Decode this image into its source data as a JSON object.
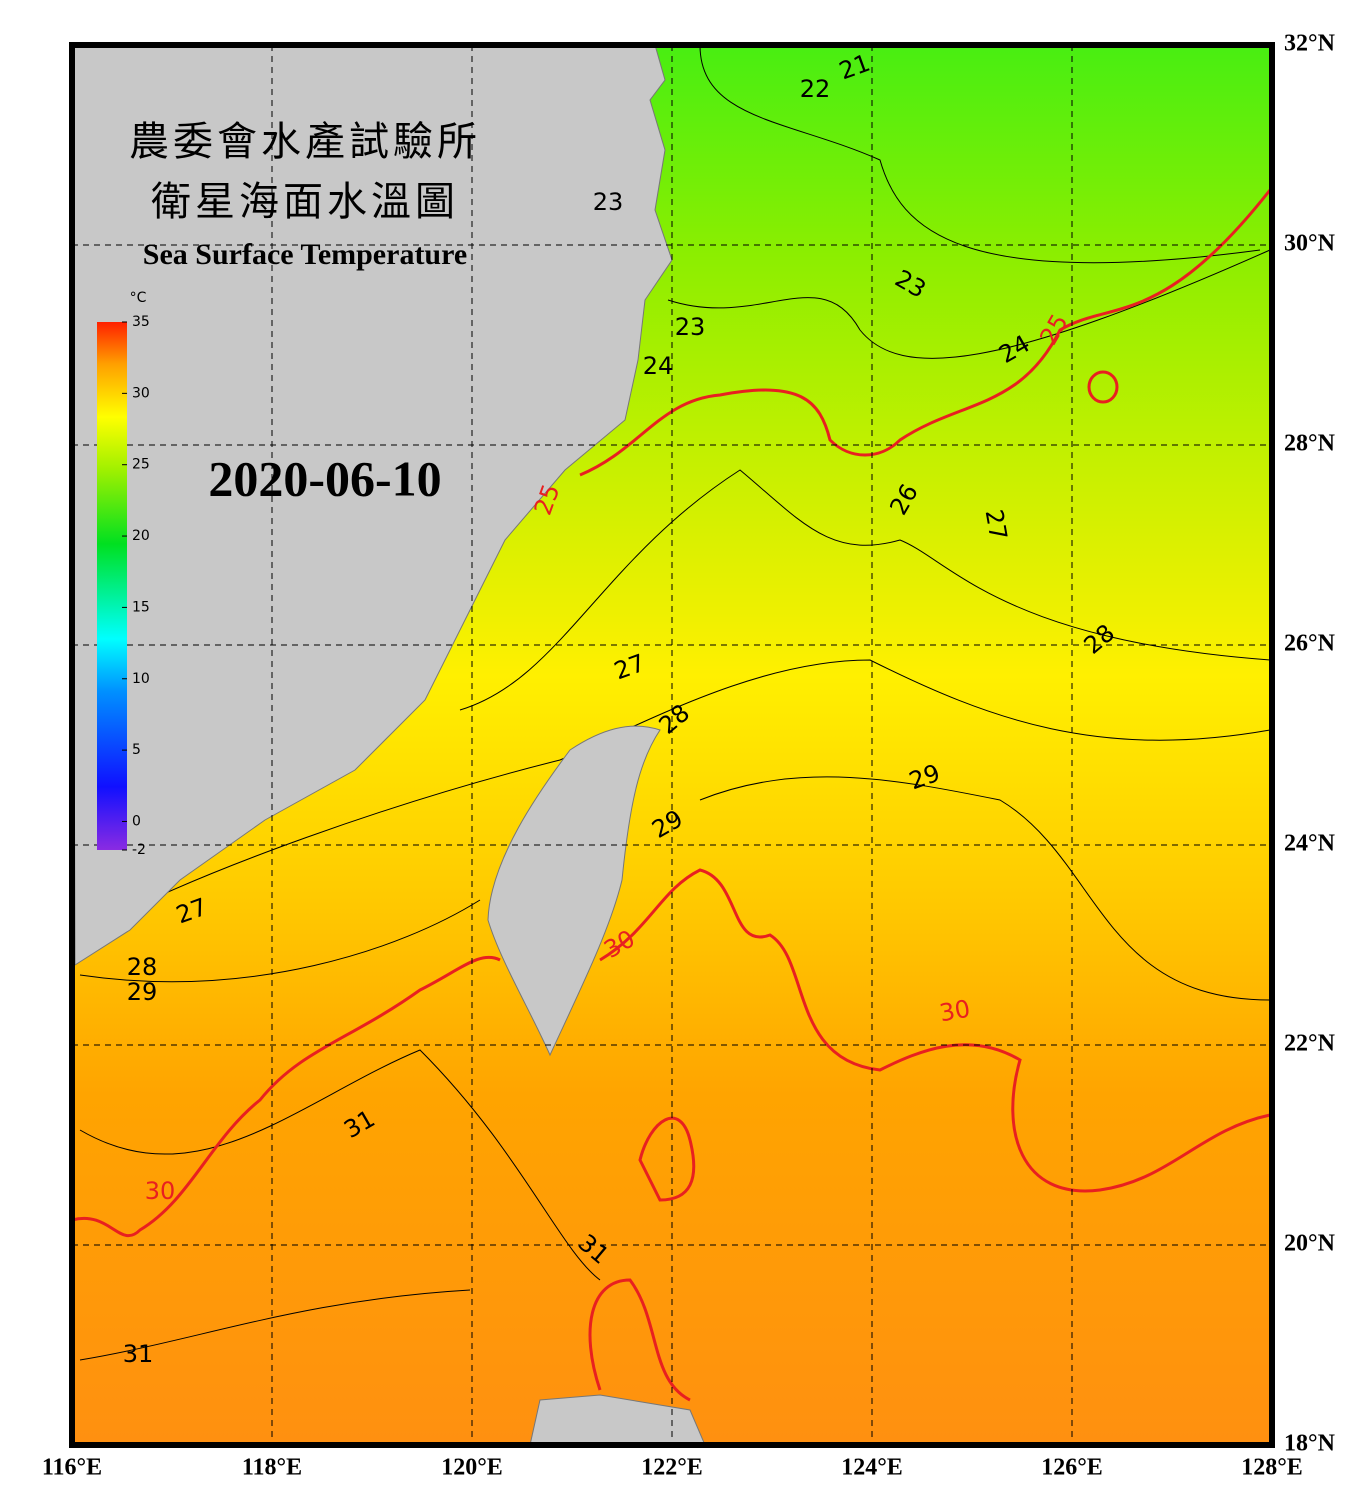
{
  "title_zh": [
    "農委會水產試驗所",
    "衛星海面水溫圖"
  ],
  "title_en": "Sea Surface Temperature",
  "date": "2020-06-10",
  "colorbar": {
    "unit": "°C",
    "range": [
      -2,
      35
    ],
    "ticks": [
      35,
      30,
      25,
      20,
      15,
      10,
      5,
      0,
      -2
    ]
  },
  "map": {
    "lon_range": [
      116,
      128
    ],
    "lat_range": [
      18,
      32
    ],
    "lon_ticks": [
      {
        "value": 116,
        "label": "116°E"
      },
      {
        "value": 118,
        "label": "118°E"
      },
      {
        "value": 120,
        "label": "120°E"
      },
      {
        "value": 122,
        "label": "122°E"
      },
      {
        "value": 124,
        "label": "124°E"
      },
      {
        "value": 126,
        "label": "126°E"
      },
      {
        "value": 128,
        "label": "128°E"
      }
    ],
    "lat_ticks": [
      {
        "value": 32,
        "label": "32°N"
      },
      {
        "value": 30,
        "label": "30°N"
      },
      {
        "value": 28,
        "label": "28°N"
      },
      {
        "value": 26,
        "label": "26°N"
      },
      {
        "value": 24,
        "label": "24°N"
      },
      {
        "value": 22,
        "label": "22°N"
      },
      {
        "value": 20,
        "label": "20°N"
      },
      {
        "value": 18,
        "label": "18°N"
      }
    ]
  },
  "contour_labels": [
    21,
    22,
    23,
    23,
    23,
    24,
    24,
    25,
    25,
    26,
    27,
    27,
    28,
    28,
    29,
    29,
    27,
    28,
    29,
    30,
    30,
    31,
    30,
    31,
    31
  ]
}
